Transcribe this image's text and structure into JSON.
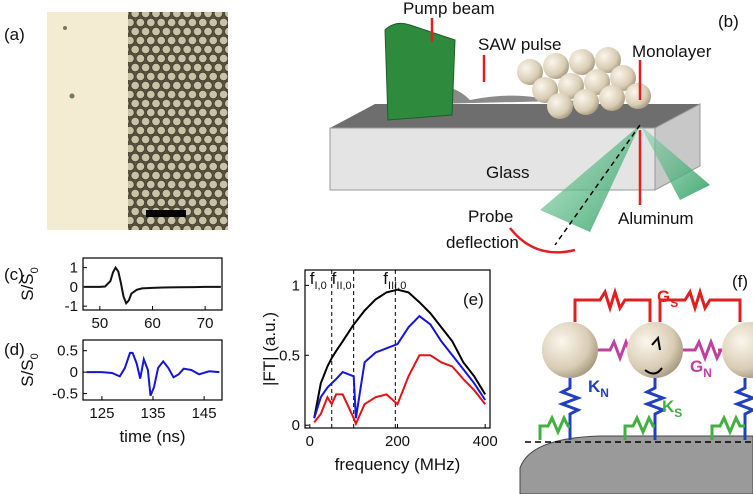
{
  "figure": {
    "a": {
      "label": "(a)"
    },
    "b": {
      "label": "(b)",
      "pump_beam": "Pump beam",
      "saw_pulse": "SAW pulse",
      "monolayer": "Monolayer",
      "glass": "Glass",
      "probe": "Probe",
      "deflection": "deflection",
      "aluminum": "Aluminum"
    },
    "f": {
      "label": "(f)",
      "g_s": {
        "main": "G",
        "sub": "S"
      },
      "g_n": {
        "main": "G",
        "sub": "N"
      },
      "k_n": {
        "main": "K",
        "sub": "N"
      },
      "k_s": {
        "main": "K",
        "sub": "S"
      }
    }
  },
  "chart_data": [
    {
      "type": "line",
      "panel": "(c)",
      "ylabel": {
        "main": "S/S",
        "sub": "0"
      },
      "x": [
        47,
        48,
        50,
        51,
        52,
        52.5,
        53,
        53.5,
        54,
        54.5,
        55,
        55.5,
        56,
        57,
        58,
        60,
        62,
        65,
        68,
        70,
        73
      ],
      "series": [
        {
          "color": "#111111",
          "values": [
            0,
            0,
            0,
            0.02,
            0.3,
            0.75,
            1.0,
            0.8,
            0.2,
            -0.5,
            -0.85,
            -0.7,
            -0.35,
            -0.15,
            -0.08,
            -0.05,
            -0.03,
            -0.02,
            -0.01,
            0,
            0
          ]
        }
      ],
      "xlim": [
        46.8,
        73.2
      ],
      "ylim": [
        -1.2,
        1.5
      ],
      "xticks": [
        50,
        60,
        70
      ],
      "yticks": [
        -1,
        0,
        1
      ]
    },
    {
      "type": "line",
      "panel": "(d)",
      "ylabel": {
        "main": "S/S",
        "sub": "0"
      },
      "xlabel": "time (ns)",
      "x": [
        122,
        125,
        127,
        128.5,
        129.5,
        130.5,
        131,
        131.8,
        132.5,
        133.2,
        134,
        134.5,
        135.2,
        136,
        137,
        138,
        139,
        140,
        141,
        142.5,
        144,
        146,
        148
      ],
      "series": [
        {
          "color": "#1515d8",
          "values": [
            0,
            0,
            -0.02,
            -0.1,
            0.1,
            0.45,
            0.45,
            0.2,
            -0.15,
            0.3,
            0.05,
            -0.55,
            -0.35,
            0.1,
            0.25,
            0.1,
            -0.12,
            -0.05,
            0.08,
            0.05,
            -0.05,
            0.02,
            0
          ]
        }
      ],
      "xlim": [
        121.3,
        148.5
      ],
      "ylim": [
        -0.65,
        0.75
      ],
      "xticks": [
        125,
        135,
        145
      ],
      "yticks": [
        -0.5,
        0,
        0.5
      ]
    },
    {
      "type": "line",
      "panel": "(e)",
      "ylabel": "|FT| (a.u.)",
      "xlabel": "frequency (MHz)",
      "x": [
        10,
        25,
        40,
        50,
        60,
        75,
        100,
        105,
        125,
        150,
        175,
        200,
        225,
        250,
        275,
        300,
        325,
        350,
        375,
        400
      ],
      "series": [
        {
          "color": "#000000",
          "values": [
            0.05,
            0.3,
            0.42,
            0.48,
            0.53,
            0.6,
            0.72,
            0.74,
            0.82,
            0.9,
            0.95,
            0.97,
            0.95,
            0.88,
            0.8,
            0.7,
            0.6,
            0.45,
            0.35,
            0.22
          ]
        },
        {
          "color": "#1515e0",
          "values": [
            0.05,
            0.2,
            0.27,
            0.3,
            0.33,
            0.38,
            0.35,
            0.05,
            0.45,
            0.52,
            0.55,
            0.58,
            0.7,
            0.78,
            0.72,
            0.6,
            0.5,
            0.4,
            0.3,
            0.18
          ]
        },
        {
          "color": "#e01515",
          "values": [
            0.02,
            0.08,
            0.2,
            0.15,
            0.22,
            0.22,
            0.05,
            0.01,
            0.15,
            0.2,
            0.22,
            0.15,
            0.35,
            0.5,
            0.5,
            0.45,
            0.42,
            0.33,
            0.25,
            0.15
          ]
        }
      ],
      "vlines": [
        {
          "x": 50,
          "label": {
            "main": "f",
            "sub": "I,0"
          }
        },
        {
          "x": 100,
          "label": {
            "main": "f",
            "sub": "II,0"
          }
        },
        {
          "x": 195,
          "label": {
            "main": "f",
            "sub": "III,0"
          }
        }
      ],
      "xlim": [
        -11,
        411
      ],
      "ylim": [
        -0.02,
        1.11
      ],
      "xticks": [
        0,
        200,
        400
      ],
      "yticks": [
        0,
        0.5,
        1
      ]
    }
  ]
}
